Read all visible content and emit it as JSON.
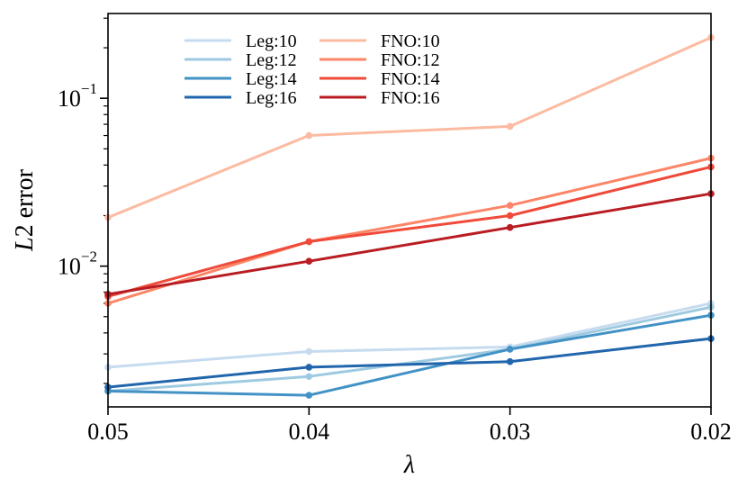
{
  "chart_data": {
    "type": "line",
    "title": "",
    "xlabel": "λ",
    "ylabel_italic": "L",
    "ylabel_rest": "2 error",
    "x": [
      0.05,
      0.04,
      0.03,
      0.02
    ],
    "x_tick_labels": [
      "0.05",
      "0.04",
      "0.03",
      "0.02"
    ],
    "xlim": [
      0.05,
      0.02
    ],
    "y_scale": "log",
    "ylim": [
      0.00145,
      0.32
    ],
    "y_major_ticks": [
      {
        "value": 0.01,
        "base": "10",
        "exp": "−2"
      },
      {
        "value": 0.1,
        "base": "10",
        "exp": "−1"
      }
    ],
    "legend_position": "upper-left",
    "legend_columns": 2,
    "series": [
      {
        "name": "Leg:10",
        "color": "#c6dbef",
        "values": [
          0.0025,
          0.0031,
          0.0033,
          0.006
        ]
      },
      {
        "name": "Leg:12",
        "color": "#9ecae1",
        "values": [
          0.0018,
          0.0022,
          0.0032,
          0.0057
        ]
      },
      {
        "name": "Leg:14",
        "color": "#4292c6",
        "values": [
          0.0018,
          0.0017,
          0.0032,
          0.0051
        ]
      },
      {
        "name": "Leg:16",
        "color": "#2166ac",
        "values": [
          0.0019,
          0.0025,
          0.0027,
          0.0037
        ]
      },
      {
        "name": "FNO:10",
        "color": "#fcbba1",
        "values": [
          0.0195,
          0.06,
          0.068,
          0.23
        ]
      },
      {
        "name": "FNO:12",
        "color": "#fb8566",
        "values": [
          0.006,
          0.014,
          0.023,
          0.044
        ]
      },
      {
        "name": "FNO:14",
        "color": "#ef4a3a",
        "values": [
          0.0066,
          0.014,
          0.02,
          0.039
        ]
      },
      {
        "name": "FNO:16",
        "color": "#b91d23",
        "values": [
          0.0068,
          0.0107,
          0.017,
          0.027
        ]
      }
    ]
  }
}
